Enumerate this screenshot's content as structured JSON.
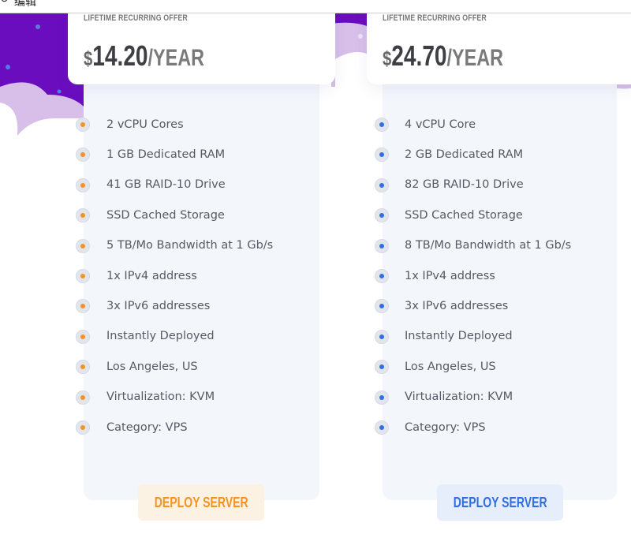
{
  "toolbar": {
    "edit_label": "编辑",
    "icon": "refresh-icon"
  },
  "colors": {
    "purple": "#6a0dbf",
    "lilac": "#d7bfe9",
    "panel": "#f3f6fb",
    "orange": "#f39422",
    "blue": "#2f6fe0"
  },
  "plans": [
    {
      "offer": "LIFETIME RECURRING OFFER",
      "currency": "$",
      "amount": "14.20",
      "period": "/YEAR",
      "accent": "#f39422",
      "button_bg": "#fcf2e4",
      "button_label": "DEPLOY SERVER",
      "features": [
        "2 vCPU Cores",
        "1 GB Dedicated RAM",
        "41 GB RAID-10 Drive",
        "SSD Cached Storage",
        "5 TB/Mo Bandwidth at 1 Gb/s",
        "1x IPv4 address",
        "3x IPv6 addresses",
        "Instantly Deployed",
        "Los Angeles, US",
        "Virtualization: KVM",
        "Category: VPS"
      ]
    },
    {
      "offer": "LIFETIME RECURRING OFFER",
      "currency": "$",
      "amount": "24.70",
      "period": "/YEAR",
      "accent": "#2f6fe0",
      "button_bg": "#e7eefb",
      "button_label": "DEPLOY SERVER",
      "features": [
        "4 vCPU Core",
        "2 GB Dedicated RAM",
        "82 GB RAID-10 Drive",
        "SSD Cached Storage",
        "8 TB/Mo Bandwidth at 1 Gb/s",
        "1x IPv4 address",
        "3x IPv6 addresses",
        "Instantly Deployed",
        "Los Angeles, US",
        "Virtualization: KVM",
        "Category: VPS"
      ]
    }
  ]
}
